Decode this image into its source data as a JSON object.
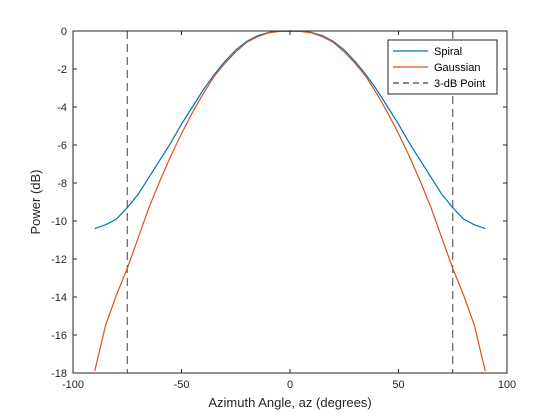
{
  "chart_data": {
    "type": "line",
    "xlabel": "Azimuth Angle, az (degrees)",
    "ylabel": "Power (dB)",
    "xlim": [
      -100,
      100
    ],
    "ylim": [
      -18,
      0
    ],
    "xticks": [
      -100,
      -50,
      0,
      50,
      100
    ],
    "yticks": [
      0,
      -2,
      -4,
      -6,
      -8,
      -10,
      -12,
      -14,
      -16,
      -18
    ],
    "grid": false,
    "legend_position": "top-right",
    "series": [
      {
        "name": "Spiral",
        "color": "#0072BD",
        "style": "solid",
        "x": [
          -90,
          -85,
          -80,
          -75,
          -70,
          -65,
          -60,
          -55,
          -50,
          -45,
          -40,
          -35,
          -30,
          -25,
          -20,
          -15,
          -10,
          -5,
          0,
          5,
          10,
          15,
          20,
          25,
          30,
          35,
          40,
          45,
          50,
          55,
          60,
          65,
          70,
          75,
          80,
          85,
          90
        ],
        "y": [
          -10.4,
          -10.2,
          -9.9,
          -9.3,
          -8.6,
          -7.7,
          -6.8,
          -5.9,
          -4.9,
          -4.0,
          -3.1,
          -2.3,
          -1.6,
          -1.0,
          -0.55,
          -0.25,
          -0.08,
          -0.01,
          0,
          -0.01,
          -0.08,
          -0.25,
          -0.55,
          -1.0,
          -1.6,
          -2.3,
          -3.1,
          -4.0,
          -4.9,
          -5.9,
          -6.8,
          -7.7,
          -8.6,
          -9.3,
          -9.9,
          -10.2,
          -10.4
        ]
      },
      {
        "name": "Gaussian",
        "color": "#D95319",
        "style": "solid",
        "x": [
          -90,
          -85,
          -80,
          -75,
          -70,
          -65,
          -60,
          -55,
          -50,
          -45,
          -40,
          -35,
          -30,
          -25,
          -20,
          -15,
          -10,
          -5,
          0,
          5,
          10,
          15,
          20,
          25,
          30,
          35,
          40,
          45,
          50,
          55,
          60,
          65,
          70,
          75,
          80,
          85,
          90
        ],
        "y": [
          -17.9,
          -15.5,
          -13.9,
          -12.5,
          -10.9,
          -9.3,
          -7.9,
          -6.6,
          -5.4,
          -4.3,
          -3.3,
          -2.4,
          -1.7,
          -1.1,
          -0.6,
          -0.3,
          -0.1,
          -0.02,
          0,
          -0.02,
          -0.1,
          -0.3,
          -0.6,
          -1.1,
          -1.7,
          -2.4,
          -3.3,
          -4.3,
          -5.4,
          -6.6,
          -7.9,
          -9.3,
          -10.9,
          -12.5,
          -13.9,
          -15.5,
          -17.9
        ]
      }
    ],
    "reference_lines": [
      {
        "name": "3-dB Point",
        "color": "#404040",
        "style": "dashed",
        "x": -75
      },
      {
        "name": "3-dB Point",
        "color": "#404040",
        "style": "dashed",
        "x": 75
      }
    ]
  }
}
